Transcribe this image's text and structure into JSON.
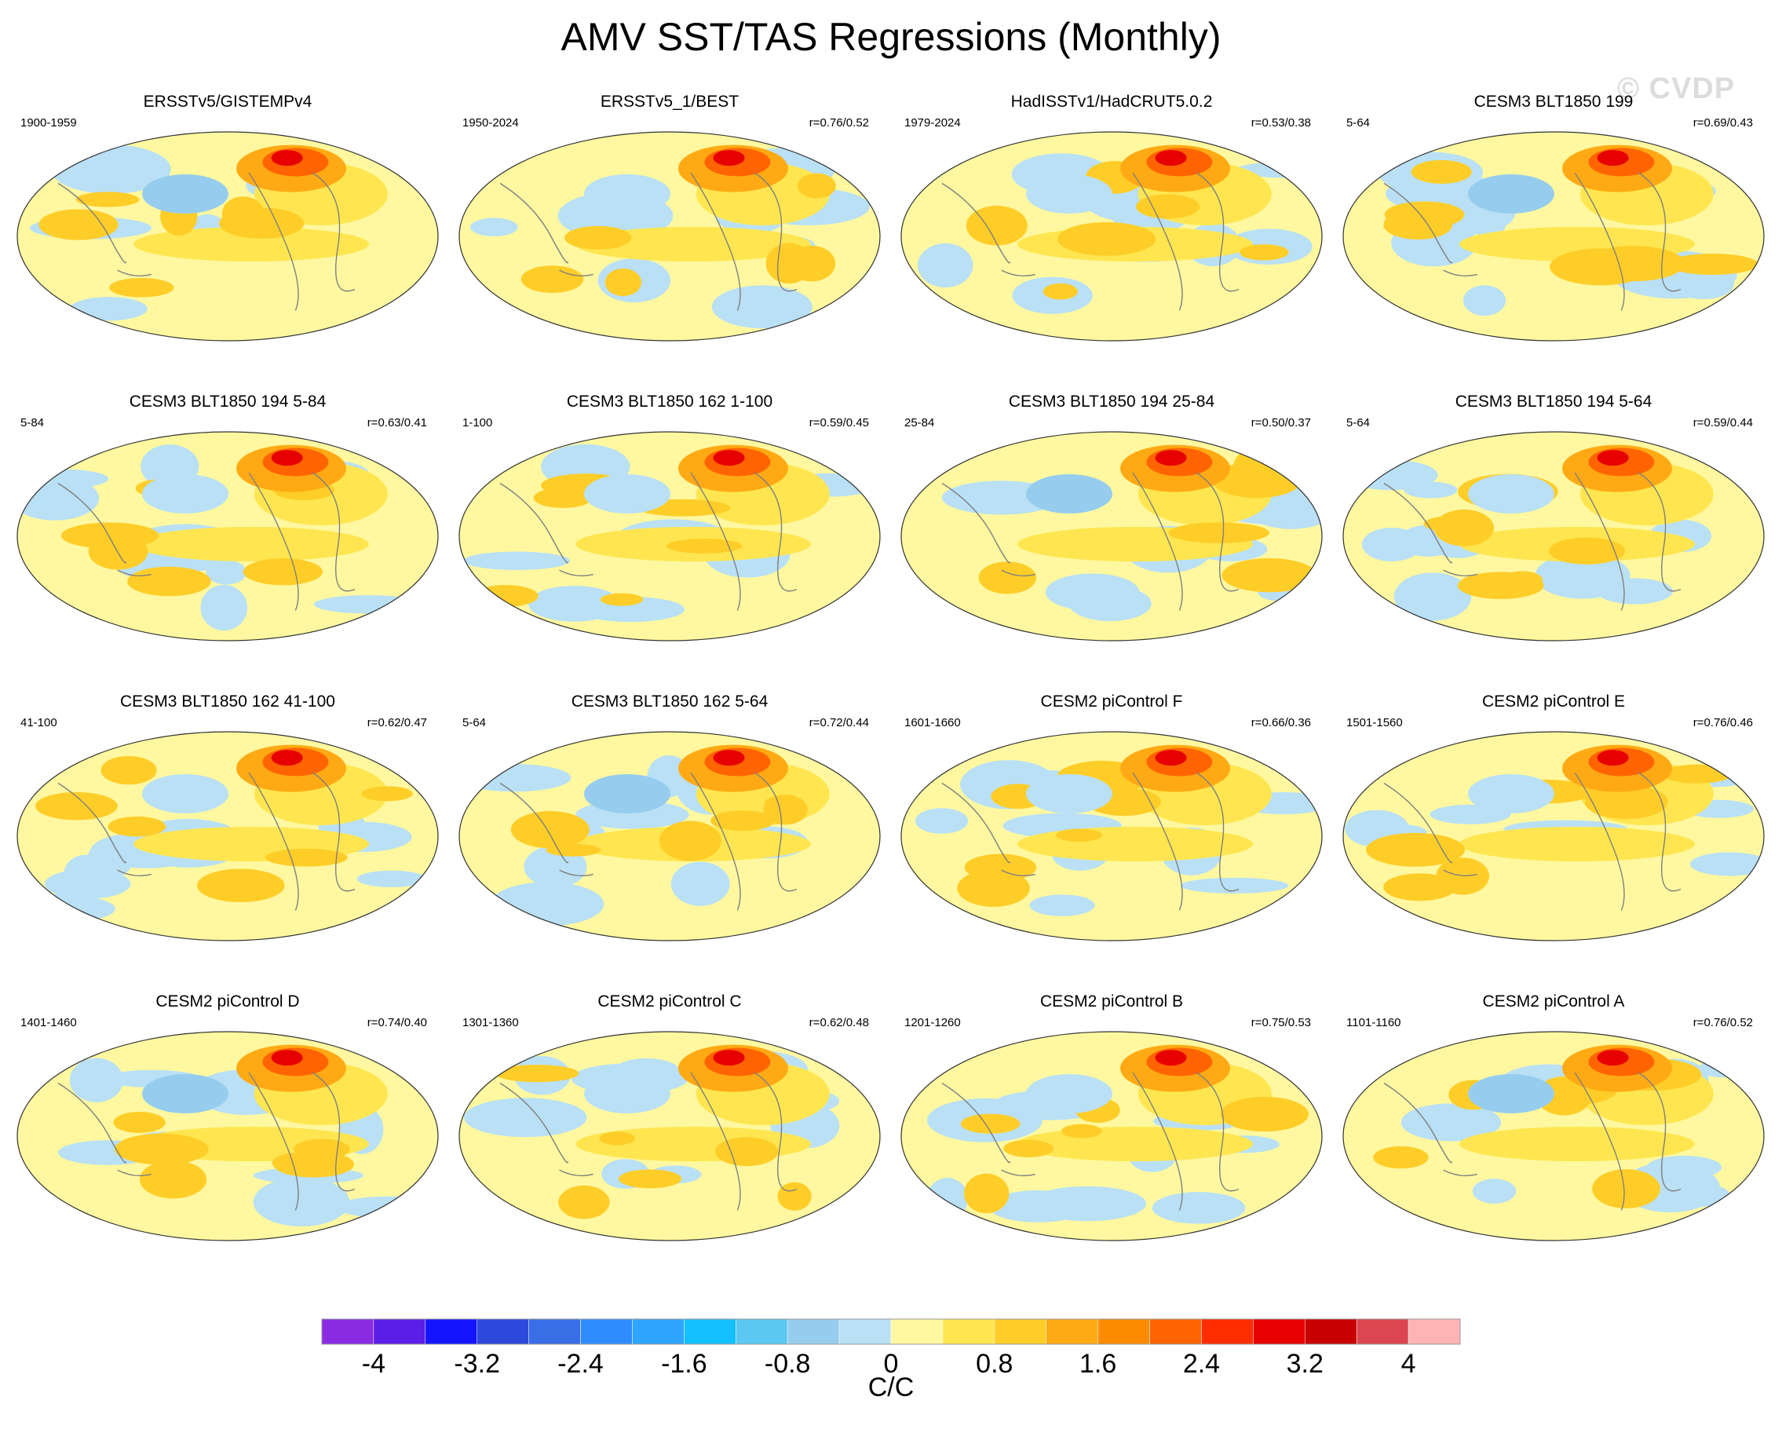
{
  "title": "AMV SST/TAS Regressions (Monthly)",
  "watermark": "© CVDP",
  "chart_data": {
    "type": "heatmap",
    "title": "AMV SST/TAS Regressions (Monthly)",
    "projection": "Robinson-like global map",
    "colorbar": {
      "units": "C/C",
      "levels": [
        -4.4,
        -4,
        -3.6,
        -3.2,
        -2.8,
        -2.4,
        -2,
        -1.6,
        -1.2,
        -0.8,
        -0.4,
        0,
        0.4,
        0.8,
        1.2,
        1.6,
        2,
        2.4,
        2.8,
        3.2,
        3.6,
        4,
        4.4
      ],
      "tick_labels": [
        "-4",
        "-3.2",
        "-2.4",
        "-1.6",
        "-0.8",
        "0",
        "0.8",
        "1.6",
        "2.4",
        "3.2",
        "4"
      ],
      "tick_values": [
        -4,
        -3.2,
        -2.4,
        -1.6,
        -0.8,
        0,
        0.8,
        1.6,
        2.4,
        3.2,
        4
      ],
      "colors": [
        "#8a2be2",
        "#5a1ee6",
        "#1414ff",
        "#2d49dc",
        "#3a6ee6",
        "#2f8cff",
        "#2fa5ff",
        "#14c0ff",
        "#5ac8f0",
        "#96cdee",
        "#b9e0f5",
        "#fff8a0",
        "#ffe650",
        "#ffcd28",
        "#ffaa14",
        "#ff8c00",
        "#ff6400",
        "#ff2d00",
        "#e60000",
        "#c80000",
        "#dc4650",
        "#ffb4b4"
      ]
    },
    "panels": [
      {
        "title": "ERSSTv5/GISTEMPv4",
        "period": "1900-1959",
        "r": ""
      },
      {
        "title": "ERSSTv5_1/BEST",
        "period": "1950-2024",
        "r": "r=0.76/0.52"
      },
      {
        "title": "HadISSTv1/HadCRUT5.0.2",
        "period": "1979-2024",
        "r": "r=0.53/0.38"
      },
      {
        "title": "CESM3 BLT1850 199",
        "period": "5-64",
        "r": "r=0.69/0.43"
      },
      {
        "title": "CESM3 BLT1850 194 5-84",
        "period": "5-84",
        "r": "r=0.63/0.41"
      },
      {
        "title": "CESM3 BLT1850 162 1-100",
        "period": "1-100",
        "r": "r=0.59/0.45"
      },
      {
        "title": "CESM3 BLT1850 194 25-84",
        "period": "25-84",
        "r": "r=0.50/0.37"
      },
      {
        "title": "CESM3 BLT1850 194 5-64",
        "period": "5-64",
        "r": "r=0.59/0.44"
      },
      {
        "title": "CESM3 BLT1850 162 41-100",
        "period": "41-100",
        "r": "r=0.62/0.47"
      },
      {
        "title": "CESM3 BLT1850 162 5-64",
        "period": "5-64",
        "r": "r=0.72/0.44"
      },
      {
        "title": "CESM2 piControl F",
        "period": "1601-1660",
        "r": "r=0.66/0.36"
      },
      {
        "title": "CESM2 piControl E",
        "period": "1501-1560",
        "r": "r=0.76/0.46"
      },
      {
        "title": "CESM2 piControl D",
        "period": "1401-1460",
        "r": "r=0.74/0.40"
      },
      {
        "title": "CESM2 piControl C",
        "period": "1301-1360",
        "r": "r=0.62/0.48"
      },
      {
        "title": "CESM2 piControl B",
        "period": "1201-1260",
        "r": "r=0.75/0.53"
      },
      {
        "title": "CESM2 piControl A",
        "period": "1101-1160",
        "r": "r=0.76/0.52"
      }
    ]
  }
}
